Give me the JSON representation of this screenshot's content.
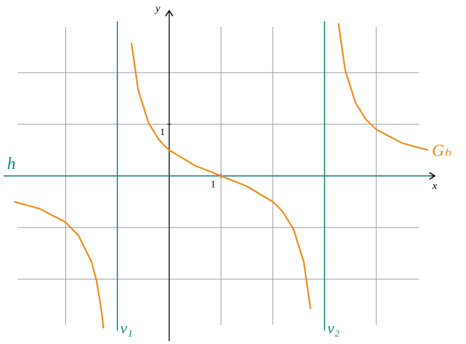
{
  "chart_data": {
    "type": "line",
    "xlabel": "x",
    "ylabel": "y",
    "xlim": [
      -3.2,
      5.13
    ],
    "ylim": [
      -3.2,
      3.2
    ],
    "xticks": [
      1
    ],
    "yticks": [
      1
    ],
    "grid": true,
    "grid_x": [
      -2,
      -1,
      1,
      2,
      3,
      4
    ],
    "grid_y": [
      -2,
      -1,
      1,
      2
    ],
    "x": [
      -3,
      -2.5,
      -2,
      -1.75,
      -1.5,
      -1.4,
      -1.3,
      -1.27,
      -1.1,
      -0.73,
      -0.6,
      -0.4,
      -0.2,
      -0.1,
      0,
      0.5,
      1,
      1.5,
      2,
      2.1,
      2.2,
      2.4,
      2.6,
      2.73,
      3,
      3.27,
      3.4,
      3.6,
      3.8,
      4,
      4.5,
      5
    ],
    "series": [
      {
        "name": "Gₕ",
        "color": "#f28a1a",
        "values": [
          -0.5,
          -0.636,
          -0.9,
          -1.158,
          -1.667,
          -2.045,
          -2.674,
          -2.953,
          null,
          2.577,
          1.667,
          1.029,
          0.703,
          0.591,
          0.5,
          0.2,
          0,
          -0.2,
          -0.5,
          -0.591,
          -0.703,
          -1.029,
          -1.667,
          -2.577,
          null,
          2.953,
          2.045,
          1.413,
          1.094,
          0.9,
          0.636,
          0.5
        ]
      }
    ],
    "asymptotes": {
      "color": "#16877f",
      "vertical": [
        {
          "name": "v₁",
          "value": -1
        },
        {
          "name": "v₂",
          "value": 3
        }
      ],
      "horizontal": [
        {
          "name": "h",
          "value": 0
        }
      ]
    }
  }
}
